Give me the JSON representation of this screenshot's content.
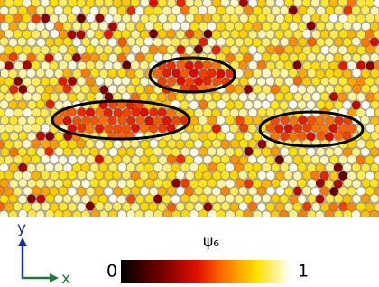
{
  "colorbar": {
    "label": "ψ₆",
    "min_label": "0",
    "max_label": "1"
  },
  "axes": {
    "y_label": "y",
    "x_label": "x"
  }
}
